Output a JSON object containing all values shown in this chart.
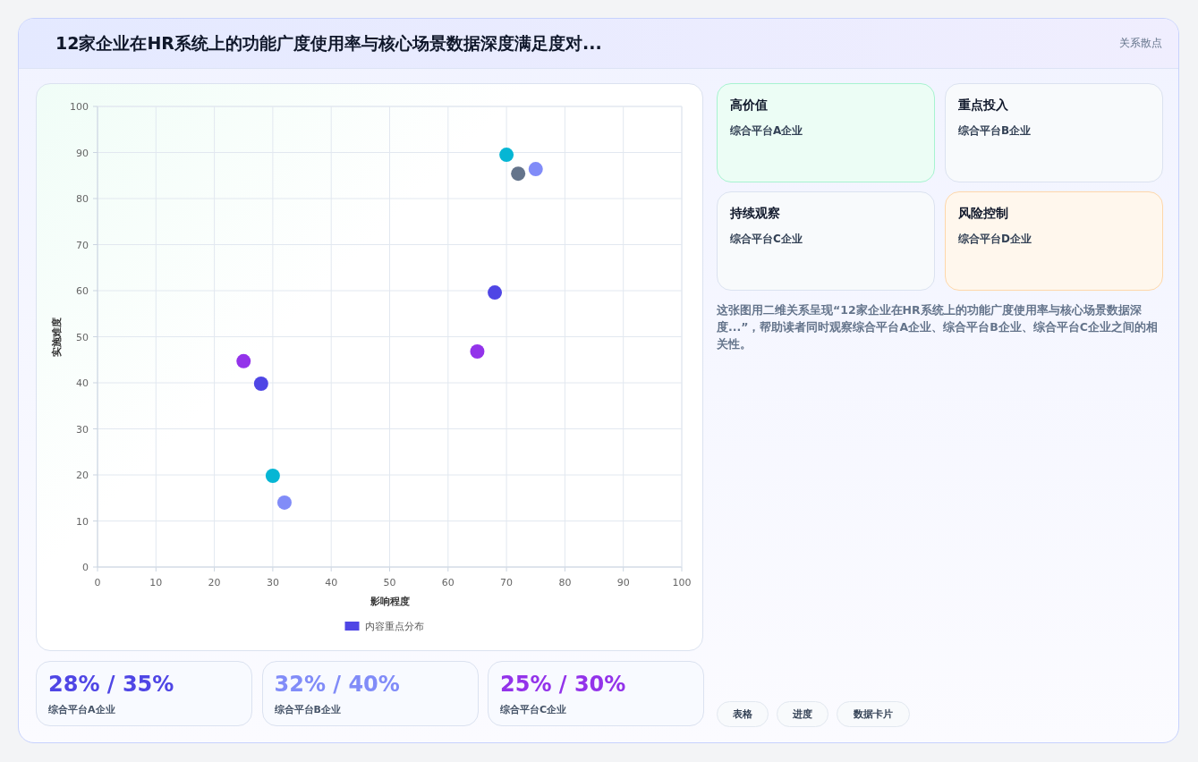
{
  "chart_data": [
    {
      "type": "scatter",
      "xlabel": "影响程度",
      "ylabel": "实施难度",
      "xlim": [
        0,
        100
      ],
      "xticks": [
        0,
        10,
        20,
        30,
        40,
        50,
        60,
        70,
        80,
        90,
        100
      ],
      "ylim": [
        0,
        100
      ],
      "yticks": [
        0,
        10,
        20,
        30,
        40,
        50,
        60,
        70,
        80,
        90,
        100
      ],
      "grid": true,
      "legend": "bottom",
      "marker": "circle",
      "series": [
        {
          "name": "内容重点分布",
          "color": "#4f46e5",
          "x": [
            70,
            72,
            75,
            68,
            65,
            25,
            28,
            30,
            32
          ],
          "values": [
            89.5,
            85.4,
            86.4,
            59.6,
            46.8,
            44.7,
            39.8,
            19.8,
            14
          ],
          "colors": [
            "#06b6d4",
            "#64748b",
            "#818cf8",
            "#4f46e5",
            "#9333ea",
            "#9333ea",
            "#4f46e5",
            "#06b6d4",
            "#818cf8"
          ]
        }
      ]
    },
    {
      "type": "other",
      "title": "12家企业在HR系统上的功能广度使用率与核心场景数据深度满足度对...",
      "subtitle": "关系散点",
      "annotations": [
        "高价值",
        "综合平台A企业",
        "重点投入",
        "综合平台B企业",
        "持续观察",
        "综合平台C企业",
        "风险控制",
        "综合平台D企业",
        "这张图用二维关系呈现“12家企业在HR系统上的功能广度使用率与核心场景数据深度...”，帮助读者同时观察综合平台A企业、综合平台B企业、综合平台C企业之间的相关性。",
        "28% / 35%",
        "综合平台A企业",
        "32% / 40%",
        "综合平台B企业",
        "25% / 30%",
        "综合平台C企业",
        "表格",
        "进度",
        "数据卡片"
      ]
    }
  ]
}
